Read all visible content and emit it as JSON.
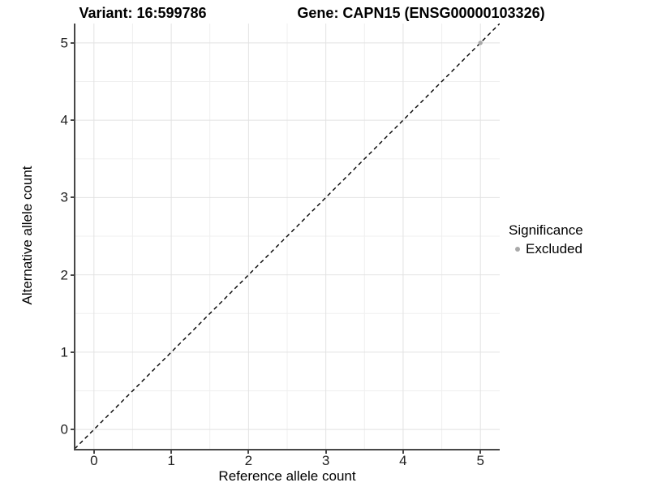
{
  "title": {
    "variant": "Variant: 16:599786",
    "gene": "Gene: CAPN15 (ENSG00000103326)"
  },
  "legend": {
    "title": "Significance",
    "items": [
      {
        "label": "Excluded",
        "color": "#a9a9a9"
      }
    ]
  },
  "chart_data": {
    "type": "scatter",
    "title": "Variant: 16:599786 | Gene: CAPN15 (ENSG00000103326)",
    "xlabel": "Reference allele count",
    "ylabel": "Alternative allele count",
    "xlim": [
      -0.25,
      5.25
    ],
    "ylim": [
      -0.25,
      5.25
    ],
    "x_ticks": [
      0,
      1,
      2,
      3,
      4,
      5
    ],
    "y_ticks": [
      0,
      1,
      2,
      3,
      4,
      5
    ],
    "grid": {
      "major": true,
      "minor": true,
      "major_color": "#e2e2e2",
      "minor_color": "#efefef"
    },
    "reference_line": {
      "slope": 1,
      "intercept": 0,
      "style": "dashed",
      "color": "#000000"
    },
    "series": [
      {
        "name": "Excluded",
        "color": "#a9a9a9",
        "points": [
          {
            "x": 5,
            "y": 5
          }
        ]
      }
    ],
    "legend_position": "right",
    "legend_title": "Significance"
  }
}
